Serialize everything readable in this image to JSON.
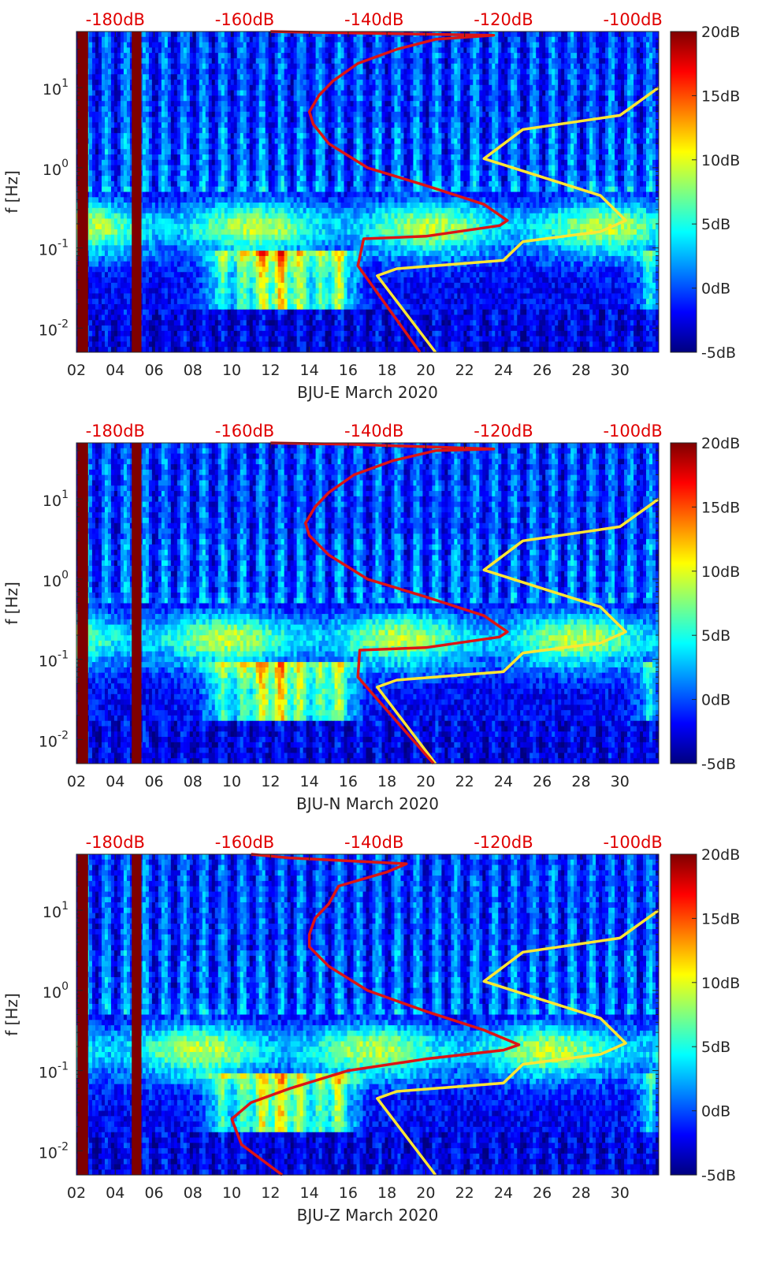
{
  "chart_data": [
    {
      "type": "heatmap",
      "xlabel": "BJU-E March 2020",
      "ylabel": "f [Hz]",
      "x_ticks": [
        "02",
        "04",
        "06",
        "08",
        "10",
        "12",
        "14",
        "16",
        "18",
        "20",
        "22",
        "24",
        "26",
        "28",
        "30"
      ],
      "x_range": [
        2,
        32
      ],
      "y_range_hz": [
        0.005,
        50
      ],
      "y_scale": "log",
      "y_ticks": [
        {
          "base": "10",
          "exp": "1"
        },
        {
          "base": "10",
          "exp": "0"
        },
        {
          "base": "10",
          "exp": "-1"
        },
        {
          "base": "10",
          "exp": "-2"
        }
      ],
      "colorbar": {
        "min": -5,
        "max": 20,
        "ticks": [
          "20dB",
          "15dB",
          "10dB",
          "5dB",
          "0dB",
          "-5dB"
        ],
        "colormap": "jet"
      },
      "top_axis_ticks": [
        "-180dB",
        "-160dB",
        "-140dB",
        "-120dB",
        "-100dB"
      ],
      "top_axis_range_db": [
        -186,
        -96
      ],
      "noise_model_lines": {
        "color": "#ffe633",
        "points": [
          [
            20.5,
            0.005
          ],
          [
            17.5,
            0.045
          ],
          [
            18.5,
            0.055
          ],
          [
            24,
            0.07
          ],
          [
            25,
            0.12
          ],
          [
            29,
            0.16
          ],
          [
            30.3,
            0.22
          ],
          [
            29,
            0.45
          ],
          [
            23,
            1.3
          ],
          [
            25,
            3
          ],
          [
            30,
            4.5
          ],
          [
            32,
            10
          ]
        ]
      },
      "psd_curve": {
        "color": "#dc1414",
        "points": [
          [
            19.7,
            0.005
          ],
          [
            16.5,
            0.06
          ],
          [
            16.8,
            0.13
          ],
          [
            20,
            0.14
          ],
          [
            23.8,
            0.19
          ],
          [
            24.2,
            0.22
          ],
          [
            23,
            0.35
          ],
          [
            20,
            0.6
          ],
          [
            17,
            1.0
          ],
          [
            15,
            2.0
          ],
          [
            14.2,
            3.5
          ],
          [
            14,
            5
          ],
          [
            14.5,
            8
          ],
          [
            15.2,
            12
          ],
          [
            16.5,
            20
          ],
          [
            18.5,
            30
          ],
          [
            20.5,
            40
          ],
          [
            23.5,
            45
          ],
          [
            16,
            48
          ],
          [
            12,
            50
          ]
        ]
      }
    },
    {
      "type": "heatmap",
      "xlabel": "BJU-N March 2020",
      "ylabel": "f [Hz]",
      "x_ticks": [
        "02",
        "04",
        "06",
        "08",
        "10",
        "12",
        "14",
        "16",
        "18",
        "20",
        "22",
        "24",
        "26",
        "28",
        "30"
      ],
      "x_range": [
        2,
        32
      ],
      "y_range_hz": [
        0.005,
        50
      ],
      "y_scale": "log",
      "y_ticks": [
        {
          "base": "10",
          "exp": "1"
        },
        {
          "base": "10",
          "exp": "0"
        },
        {
          "base": "10",
          "exp": "-1"
        },
        {
          "base": "10",
          "exp": "-2"
        }
      ],
      "colorbar": {
        "min": -5,
        "max": 20,
        "ticks": [
          "20dB",
          "15dB",
          "10dB",
          "5dB",
          "0dB",
          "-5dB"
        ],
        "colormap": "jet"
      },
      "top_axis_ticks": [
        "-180dB",
        "-160dB",
        "-140dB",
        "-120dB",
        "-100dB"
      ],
      "top_axis_range_db": [
        -186,
        -96
      ],
      "noise_model_lines": {
        "color": "#ffe633",
        "points": [
          [
            20.5,
            0.005
          ],
          [
            17.5,
            0.045
          ],
          [
            18.5,
            0.055
          ],
          [
            24,
            0.07
          ],
          [
            25,
            0.12
          ],
          [
            29,
            0.16
          ],
          [
            30.3,
            0.22
          ],
          [
            29,
            0.45
          ],
          [
            23,
            1.3
          ],
          [
            25,
            3
          ],
          [
            30,
            4.5
          ],
          [
            32,
            10
          ]
        ]
      },
      "psd_curve": {
        "color": "#dc1414",
        "points": [
          [
            20.4,
            0.005
          ],
          [
            16.5,
            0.06
          ],
          [
            16.6,
            0.13
          ],
          [
            20,
            0.14
          ],
          [
            23.8,
            0.19
          ],
          [
            24.2,
            0.22
          ],
          [
            23,
            0.35
          ],
          [
            20,
            0.6
          ],
          [
            17,
            1.0
          ],
          [
            15,
            2.0
          ],
          [
            14,
            3.5
          ],
          [
            13.8,
            5
          ],
          [
            14.3,
            8
          ],
          [
            15,
            12
          ],
          [
            16.3,
            20
          ],
          [
            18.3,
            30
          ],
          [
            20.5,
            40
          ],
          [
            23.5,
            42
          ],
          [
            16,
            48
          ],
          [
            12,
            50
          ]
        ]
      }
    },
    {
      "type": "heatmap",
      "xlabel": "BJU-Z March 2020",
      "ylabel": "f [Hz]",
      "x_ticks": [
        "02",
        "04",
        "06",
        "08",
        "10",
        "12",
        "14",
        "16",
        "18",
        "20",
        "22",
        "24",
        "26",
        "28",
        "30"
      ],
      "x_range": [
        2,
        32
      ],
      "y_range_hz": [
        0.005,
        50
      ],
      "y_scale": "log",
      "y_ticks": [
        {
          "base": "10",
          "exp": "1"
        },
        {
          "base": "10",
          "exp": "0"
        },
        {
          "base": "10",
          "exp": "-1"
        },
        {
          "base": "10",
          "exp": "-2"
        }
      ],
      "colorbar": {
        "min": -5,
        "max": 20,
        "ticks": [
          "20dB",
          "15dB",
          "10dB",
          "5dB",
          "0dB",
          "-5dB"
        ],
        "colormap": "jet"
      },
      "top_axis_ticks": [
        "-180dB",
        "-160dB",
        "-140dB",
        "-120dB",
        "-100dB"
      ],
      "top_axis_range_db": [
        -186,
        -96
      ],
      "noise_model_lines": {
        "color": "#ffe633",
        "points": [
          [
            20.5,
            0.005
          ],
          [
            17.5,
            0.045
          ],
          [
            18.5,
            0.055
          ],
          [
            24,
            0.07
          ],
          [
            25,
            0.12
          ],
          [
            29,
            0.16
          ],
          [
            30.3,
            0.22
          ],
          [
            29,
            0.45
          ],
          [
            23,
            1.3
          ],
          [
            25,
            3
          ],
          [
            30,
            4.5
          ],
          [
            32,
            10
          ]
        ]
      },
      "psd_curve": {
        "color": "#dc1414",
        "points": [
          [
            12.6,
            0.005
          ],
          [
            10.5,
            0.012
          ],
          [
            10,
            0.025
          ],
          [
            11,
            0.04
          ],
          [
            13,
            0.06
          ],
          [
            16,
            0.1
          ],
          [
            20,
            0.14
          ],
          [
            24,
            0.18
          ],
          [
            24.8,
            0.21
          ],
          [
            23,
            0.32
          ],
          [
            20,
            0.55
          ],
          [
            17,
            1.0
          ],
          [
            15,
            2.0
          ],
          [
            14,
            3.5
          ],
          [
            14,
            5
          ],
          [
            14.3,
            8
          ],
          [
            15,
            12
          ],
          [
            15.5,
            20
          ],
          [
            18,
            30
          ],
          [
            19,
            38
          ],
          [
            13,
            45
          ],
          [
            11,
            50
          ]
        ]
      }
    }
  ]
}
